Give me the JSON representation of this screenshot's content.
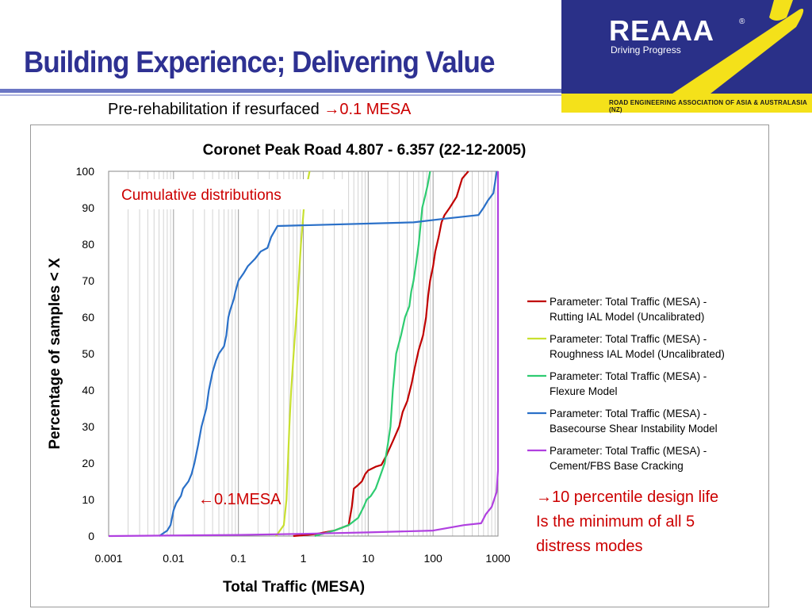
{
  "slide": {
    "title": "Building Experience; Delivering Value",
    "subtitle_prefix": "Pre-rehabilitation if resurfaced ",
    "subtitle_highlight": "→0.1 MESA",
    "annotation_box": "Cumulative distributions",
    "callout_left": "←0.1MESA",
    "callout_right_1": "→10 percentile design life",
    "callout_right_2": "Is the minimum of all 5",
    "callout_right_3": "distress modes"
  },
  "logo": {
    "name": "REAAA",
    "reg": "®",
    "tagline": "Driving Progress",
    "org": "ROAD ENGINEERING ASSOCIATION OF ASIA & AUSTRALASIA (NZ)",
    "bg_color": "#2a3088",
    "accent_color": "#f4e11a"
  },
  "chart_data": {
    "type": "line",
    "title": "Coronet Peak Road 4.807 - 6.357 (22-12-2005)",
    "xlabel": "Total Traffic (MESA)",
    "ylabel": "Percentage of samples < X",
    "xscale": "log",
    "xlim": [
      0.001,
      1000
    ],
    "ylim": [
      0,
      100
    ],
    "xticks": [
      "0.001",
      "0.01",
      "0.1",
      "1",
      "10",
      "100",
      "1000"
    ],
    "yticks": [
      "0",
      "10",
      "20",
      "30",
      "40",
      "50",
      "60",
      "70",
      "80",
      "90",
      "100"
    ],
    "grid": true,
    "legend_position": "right",
    "series": [
      {
        "name": "Parameter: Total Traffic (MESA) - Rutting IAL Model (Uncalibrated)",
        "color": "#c00000",
        "points": [
          [
            0.7,
            0
          ],
          [
            1.5,
            0.5
          ],
          [
            3,
            1.5
          ],
          [
            5,
            3
          ],
          [
            5.6,
            8
          ],
          [
            6,
            13
          ],
          [
            7,
            14
          ],
          [
            8,
            15
          ],
          [
            9,
            17
          ],
          [
            10,
            18
          ],
          [
            13,
            19
          ],
          [
            16,
            19.5
          ],
          [
            19,
            22
          ],
          [
            24,
            26
          ],
          [
            30,
            30
          ],
          [
            34,
            34
          ],
          [
            40,
            37
          ],
          [
            47,
            42
          ],
          [
            52,
            46
          ],
          [
            60,
            51
          ],
          [
            70,
            55
          ],
          [
            78,
            60
          ],
          [
            84,
            66
          ],
          [
            90,
            70
          ],
          [
            100,
            74
          ],
          [
            108,
            78
          ],
          [
            122,
            82
          ],
          [
            135,
            86
          ],
          [
            150,
            88
          ],
          [
            180,
            90
          ],
          [
            230,
            93
          ],
          [
            280,
            98
          ],
          [
            350,
            100
          ]
        ]
      },
      {
        "name": "Parameter: Total Traffic (MESA) - Roughness IAL Model (Uncalibrated)",
        "color": "#c8e030",
        "points": [
          [
            0.38,
            0
          ],
          [
            0.5,
            3
          ],
          [
            0.55,
            10
          ],
          [
            0.58,
            20
          ],
          [
            0.61,
            30
          ],
          [
            0.65,
            40
          ],
          [
            0.71,
            50
          ],
          [
            0.78,
            60
          ],
          [
            0.85,
            70
          ],
          [
            0.92,
            80
          ],
          [
            1.02,
            90
          ],
          [
            1.13,
            96
          ],
          [
            1.25,
            100
          ]
        ]
      },
      {
        "name": "Parameter: Total Traffic (MESA) - Flexure Model",
        "color": "#2ecc71",
        "points": [
          [
            1.5,
            0
          ],
          [
            3,
            1.5
          ],
          [
            5,
            3
          ],
          [
            7,
            5
          ],
          [
            8.5,
            8
          ],
          [
            9.5,
            10
          ],
          [
            11,
            11
          ],
          [
            13,
            13
          ],
          [
            15,
            16
          ],
          [
            18,
            20
          ],
          [
            20,
            25
          ],
          [
            22,
            30
          ],
          [
            24,
            40
          ],
          [
            27,
            50
          ],
          [
            32,
            55
          ],
          [
            37,
            60
          ],
          [
            43,
            63
          ],
          [
            46,
            67
          ],
          [
            50,
            70
          ],
          [
            55,
            75
          ],
          [
            60,
            80
          ],
          [
            64,
            85
          ],
          [
            68,
            90
          ],
          [
            75,
            93
          ],
          [
            82,
            96
          ],
          [
            90,
            100
          ]
        ]
      },
      {
        "name": "Parameter: Total Traffic (MESA) - Basecourse Shear Instability Model",
        "color": "#2a70c8",
        "points": [
          [
            0.006,
            0
          ],
          [
            0.008,
            1.5
          ],
          [
            0.009,
            3
          ],
          [
            0.01,
            7
          ],
          [
            0.011,
            9
          ],
          [
            0.013,
            11
          ],
          [
            0.014,
            13
          ],
          [
            0.017,
            15
          ],
          [
            0.019,
            17
          ],
          [
            0.021,
            20
          ],
          [
            0.024,
            25
          ],
          [
            0.027,
            30
          ],
          [
            0.032,
            35
          ],
          [
            0.035,
            40
          ],
          [
            0.04,
            45
          ],
          [
            0.045,
            48
          ],
          [
            0.05,
            50
          ],
          [
            0.06,
            52
          ],
          [
            0.065,
            55
          ],
          [
            0.07,
            60
          ],
          [
            0.075,
            62
          ],
          [
            0.085,
            65
          ],
          [
            0.09,
            67
          ],
          [
            0.1,
            70
          ],
          [
            0.12,
            72
          ],
          [
            0.14,
            74
          ],
          [
            0.18,
            76
          ],
          [
            0.22,
            78
          ],
          [
            0.28,
            79
          ],
          [
            0.32,
            82
          ],
          [
            0.4,
            85
          ],
          [
            50,
            86
          ],
          [
            150,
            87
          ],
          [
            500,
            88
          ],
          [
            600,
            90
          ],
          [
            700,
            92
          ],
          [
            850,
            94
          ],
          [
            960,
            100
          ]
        ]
      },
      {
        "name": "Parameter: Total Traffic (MESA) - Cement/FBS Base Cracking",
        "color": "#b040e0",
        "points": [
          [
            0.001,
            0
          ],
          [
            0.1,
            0.3
          ],
          [
            1,
            0.6
          ],
          [
            10,
            1
          ],
          [
            100,
            1.5
          ],
          [
            300,
            3
          ],
          [
            550,
            3.5
          ],
          [
            650,
            6
          ],
          [
            800,
            8
          ],
          [
            950,
            12
          ],
          [
            1000,
            18
          ],
          [
            1000,
            100
          ]
        ]
      }
    ]
  }
}
